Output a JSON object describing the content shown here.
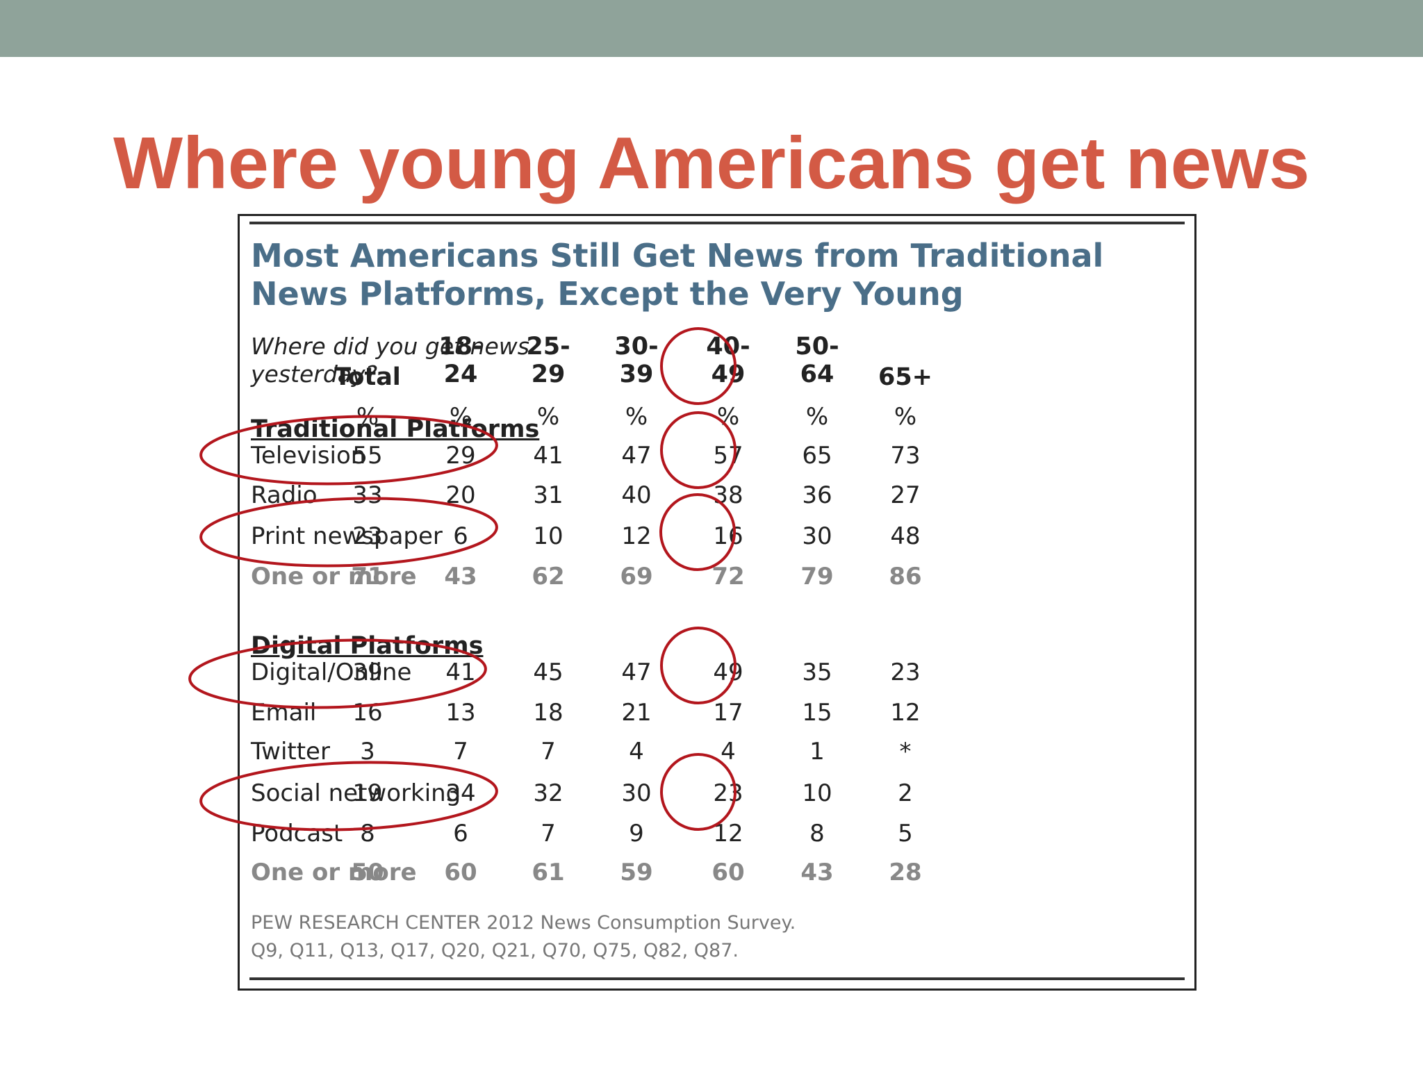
{
  "slide": {
    "title": "Where young Americans get news"
  },
  "chart_data": {
    "type": "table",
    "title_lines": [
      "Most Americans Still Get News from Traditional",
      "News Platforms, Except the Very Young"
    ],
    "question_lines": [
      "Where did you get news",
      "yesterday?"
    ],
    "columns": [
      {
        "lines": [
          "Total"
        ]
      },
      {
        "lines": [
          "18-",
          "24"
        ]
      },
      {
        "lines": [
          "25-",
          "29"
        ]
      },
      {
        "lines": [
          "30-",
          "39"
        ]
      },
      {
        "lines": [
          "40-",
          "49"
        ]
      },
      {
        "lines": [
          "50-",
          "64"
        ]
      },
      {
        "lines": [
          "65+"
        ]
      }
    ],
    "percent_row": [
      "%",
      "%",
      "%",
      "%",
      "%",
      "%",
      "%"
    ],
    "sections": [
      {
        "heading": "Traditional Platforms",
        "rows": [
          {
            "label": "Television",
            "values": [
              "55",
              "29",
              "41",
              "47",
              "57",
              "65",
              "73"
            ],
            "emphasis": false
          },
          {
            "label": "Radio",
            "values": [
              "33",
              "20",
              "31",
              "40",
              "38",
              "36",
              "27"
            ],
            "emphasis": false
          },
          {
            "label": "Print newspaper",
            "values": [
              "23",
              "6",
              "10",
              "12",
              "16",
              "30",
              "48"
            ],
            "emphasis": false
          },
          {
            "label": "One or more",
            "values": [
              "71",
              "43",
              "62",
              "69",
              "72",
              "79",
              "86"
            ],
            "emphasis": true
          }
        ]
      },
      {
        "heading": "Digital Platforms",
        "rows": [
          {
            "label": "Digital/Online",
            "values": [
              "39",
              "41",
              "45",
              "47",
              "49",
              "35",
              "23"
            ],
            "emphasis": false
          },
          {
            "label": "Email",
            "values": [
              "16",
              "13",
              "18",
              "21",
              "17",
              "15",
              "12"
            ],
            "emphasis": false
          },
          {
            "label": "Twitter",
            "values": [
              "3",
              "7",
              "7",
              "4",
              "4",
              "1",
              "*"
            ],
            "emphasis": false
          },
          {
            "label": "Social networking",
            "values": [
              "19",
              "34",
              "32",
              "30",
              "23",
              "10",
              "2"
            ],
            "emphasis": false
          },
          {
            "label": "Podcast",
            "values": [
              "8",
              "6",
              "7",
              "9",
              "12",
              "8",
              "5"
            ],
            "emphasis": false
          },
          {
            "label": "One or more",
            "values": [
              "50",
              "60",
              "61",
              "59",
              "60",
              "43",
              "28"
            ],
            "emphasis": true
          }
        ]
      }
    ],
    "source_lines": [
      "PEW RESEARCH CENTER 2012 News Consumption Survey.",
      "Q9, Q11, Q13, Q17, Q20, Q21, Q70, Q75, Q82, Q87."
    ],
    "highlights": {
      "color": "#b3161d",
      "rows": [
        "Television",
        "Print newspaper",
        "Digital/Online",
        "Social networking"
      ],
      "column": "18-24"
    }
  }
}
